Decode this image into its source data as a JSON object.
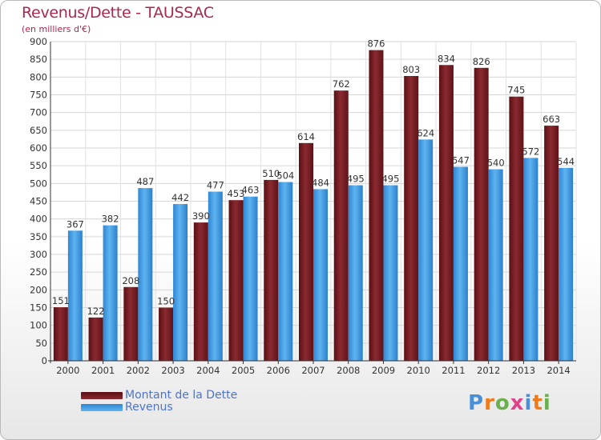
{
  "title": "Revenus/Dette - TAUSSAC",
  "subtitle": "(en milliers d'€)",
  "legend": {
    "items": [
      {
        "label": "Montant de la Dette",
        "color": "#7a1f25"
      },
      {
        "label": "Revenus",
        "color": "#4ea3e6"
      }
    ]
  },
  "logo": {
    "text": "Proxiti",
    "colors": [
      "#4a8fd8",
      "#f07b1a",
      "#6ab04c",
      "#e0428a",
      "#4a8fd8",
      "#f07b1a",
      "#6ab04c"
    ]
  },
  "chart_data": {
    "type": "bar",
    "categories": [
      "2000",
      "2001",
      "2002",
      "2003",
      "2004",
      "2005",
      "2006",
      "2007",
      "2008",
      "2009",
      "2010",
      "2011",
      "2012",
      "2013",
      "2014"
    ],
    "series": [
      {
        "name": "Montant de la Dette",
        "color": "#7a1f25",
        "values": [
          151,
          122,
          208,
          150,
          390,
          453,
          510,
          614,
          762,
          876,
          803,
          834,
          826,
          745,
          663
        ]
      },
      {
        "name": "Revenus",
        "color": "#4ea3e6",
        "values": [
          367,
          382,
          487,
          442,
          477,
          463,
          504,
          484,
          495,
          495,
          624,
          547,
          540,
          572,
          544
        ]
      }
    ],
    "ylim": [
      0,
      900
    ],
    "yticks": [
      0,
      50,
      100,
      150,
      200,
      250,
      300,
      350,
      400,
      450,
      500,
      550,
      600,
      650,
      700,
      750,
      800,
      850,
      900
    ],
    "grid": true,
    "legend_position": "bottom-left"
  }
}
